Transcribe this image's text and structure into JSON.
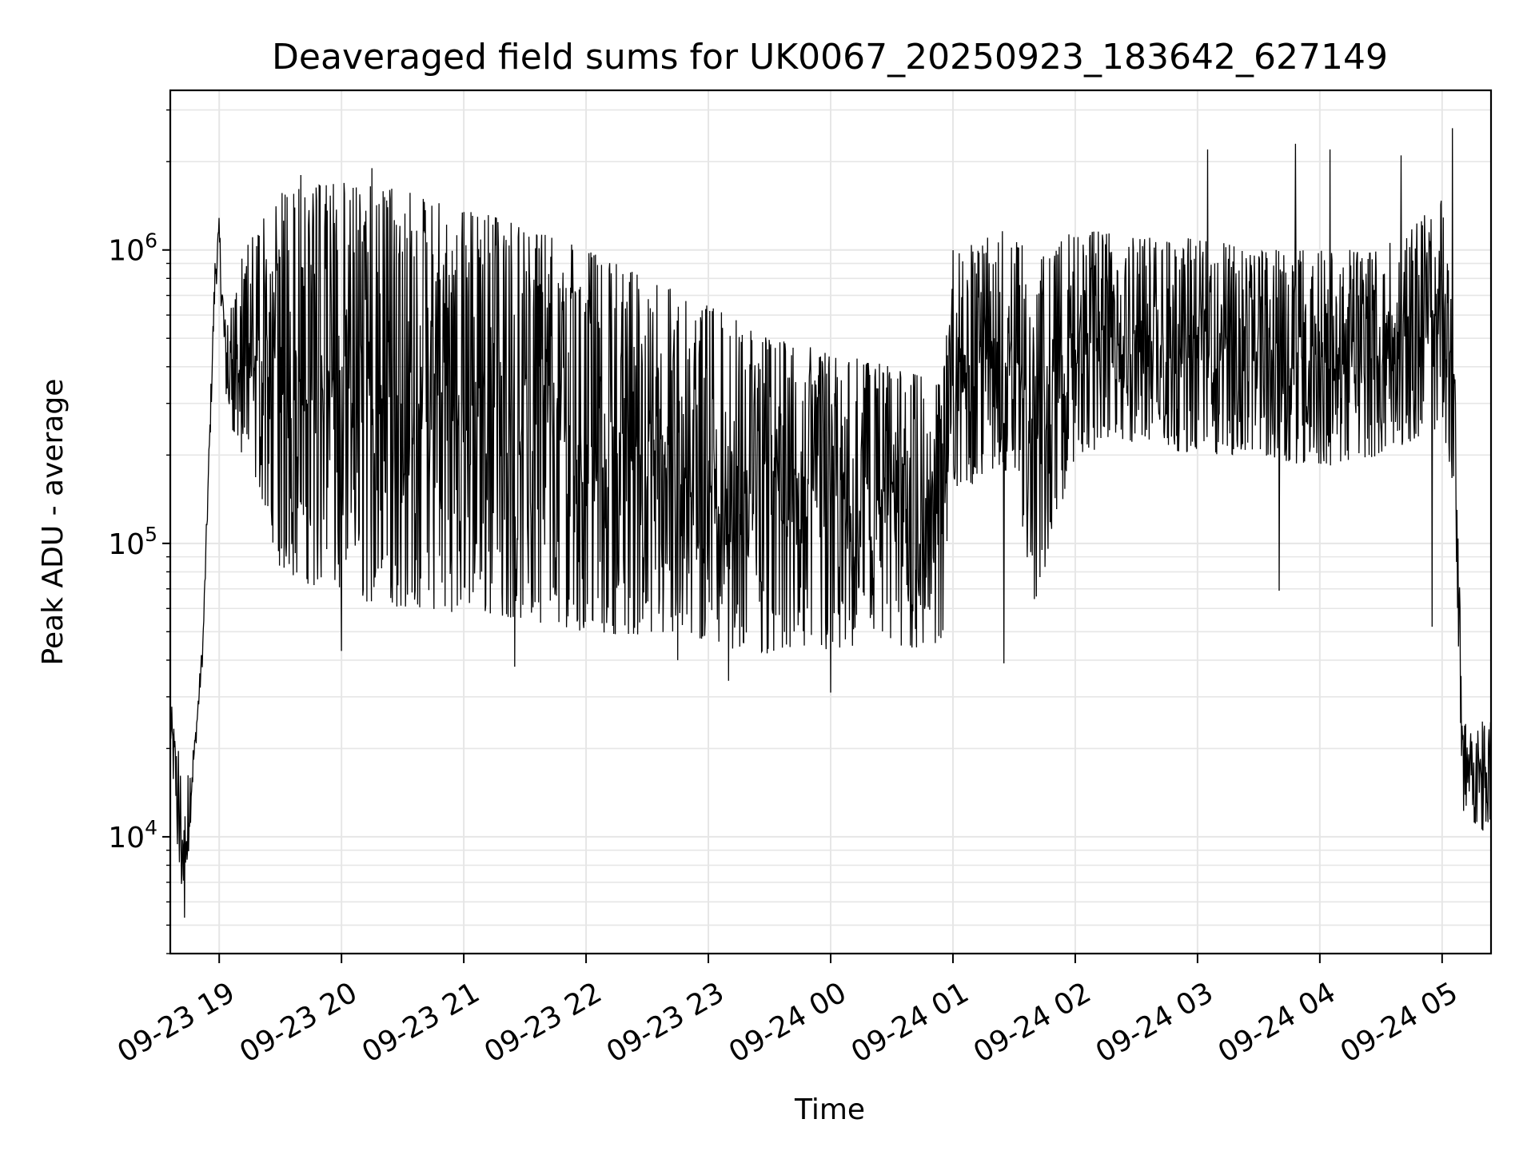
{
  "chart_data": {
    "type": "line",
    "title": "Deaveraged field sums for UK0067_20250923_183642_627149",
    "xlabel": "Time",
    "ylabel": "Peak ADU - average",
    "x_axis": {
      "kind": "time",
      "range": [
        "2025-09-23 18:36",
        "2025-09-24 05:24"
      ],
      "ticks": [
        {
          "value": "2025-09-23 19:00",
          "label": "09-23 19"
        },
        {
          "value": "2025-09-23 20:00",
          "label": "09-23 20"
        },
        {
          "value": "2025-09-23 21:00",
          "label": "09-23 21"
        },
        {
          "value": "2025-09-23 22:00",
          "label": "09-23 22"
        },
        {
          "value": "2025-09-23 23:00",
          "label": "09-23 23"
        },
        {
          "value": "2025-09-24 00:00",
          "label": "09-24 00"
        },
        {
          "value": "2025-09-24 01:00",
          "label": "09-24 01"
        },
        {
          "value": "2025-09-24 02:00",
          "label": "09-24 02"
        },
        {
          "value": "2025-09-24 03:00",
          "label": "09-24 03"
        },
        {
          "value": "2025-09-24 04:00",
          "label": "09-24 04"
        },
        {
          "value": "2025-09-24 05:00",
          "label": "09-24 05"
        }
      ],
      "tick_label_rotation_deg": 30
    },
    "y_axis": {
      "scale": "log",
      "range": [
        4000,
        3500000
      ],
      "ticks": [
        {
          "value": 10000,
          "base": "10",
          "exp": "4"
        },
        {
          "value": 100000,
          "base": "10",
          "exp": "5"
        },
        {
          "value": 1000000,
          "base": "10",
          "exp": "6"
        }
      ]
    },
    "grid": true,
    "series_color": "#000000",
    "grid_color": "#e6e6e6",
    "envelope": [
      {
        "t": "2025-09-23 18:36",
        "low": 20000,
        "high": 30000
      },
      {
        "t": "2025-09-23 18:40",
        "low": 8000,
        "high": 20000
      },
      {
        "t": "2025-09-23 18:43",
        "low": 5500,
        "high": 17000
      },
      {
        "t": "2025-09-23 18:48",
        "low": 18000,
        "high": 22000
      },
      {
        "t": "2025-09-23 18:52",
        "low": 40000,
        "high": 50000
      },
      {
        "t": "2025-09-23 18:58",
        "low": 700000,
        "high": 1000000
      },
      {
        "t": "2025-09-23 19:00",
        "low": 900000,
        "high": 1300000
      },
      {
        "t": "2025-09-23 19:03",
        "low": 300000,
        "high": 600000
      },
      {
        "t": "2025-09-23 19:10",
        "low": 200000,
        "high": 900000
      },
      {
        "t": "2025-09-23 19:20",
        "low": 150000,
        "high": 1300000
      },
      {
        "t": "2025-09-23 19:30",
        "low": 80000,
        "high": 1600000
      },
      {
        "t": "2025-09-23 20:00",
        "low": 65000,
        "high": 1700000
      },
      {
        "t": "2025-09-23 20:30",
        "low": 60000,
        "high": 1600000
      },
      {
        "t": "2025-09-23 21:00",
        "low": 58000,
        "high": 1400000
      },
      {
        "t": "2025-09-23 21:30",
        "low": 55000,
        "high": 1200000
      },
      {
        "t": "2025-09-23 22:00",
        "low": 50000,
        "high": 1000000
      },
      {
        "t": "2025-09-23 22:30",
        "low": 48000,
        "high": 800000
      },
      {
        "t": "2025-09-23 23:00",
        "low": 45000,
        "high": 650000
      },
      {
        "t": "2025-09-23 23:30",
        "low": 42000,
        "high": 500000
      },
      {
        "t": "2025-09-24 00:00",
        "low": 42000,
        "high": 450000
      },
      {
        "t": "2025-09-24 00:30",
        "low": 42000,
        "high": 400000
      },
      {
        "t": "2025-09-24 00:55",
        "low": 45000,
        "high": 350000
      },
      {
        "t": "2025-09-24 01:00",
        "low": 150000,
        "high": 1000000
      },
      {
        "t": "2025-09-24 01:30",
        "low": 180000,
        "high": 1200000
      },
      {
        "t": "2025-09-24 01:40",
        "low": 60000,
        "high": 900000
      },
      {
        "t": "2025-09-24 02:00",
        "low": 200000,
        "high": 1200000
      },
      {
        "t": "2025-09-24 02:30",
        "low": 220000,
        "high": 1100000
      },
      {
        "t": "2025-09-24 03:00",
        "low": 200000,
        "high": 1100000
      },
      {
        "t": "2025-09-24 03:30",
        "low": 200000,
        "high": 1000000
      },
      {
        "t": "2025-09-24 04:00",
        "low": 180000,
        "high": 1000000
      },
      {
        "t": "2025-09-24 04:30",
        "low": 200000,
        "high": 1000000
      },
      {
        "t": "2025-09-24 05:00",
        "low": 250000,
        "high": 1500000
      },
      {
        "t": "2025-09-24 05:06",
        "low": 150000,
        "high": 500000
      },
      {
        "t": "2025-09-24 05:10",
        "low": 12000,
        "high": 25000
      },
      {
        "t": "2025-09-24 05:24",
        "low": 10000,
        "high": 25000
      }
    ],
    "spikes": [
      {
        "t": "2025-09-23 18:43",
        "value": 5300
      },
      {
        "t": "2025-09-23 19:40",
        "value": 1800000
      },
      {
        "t": "2025-09-23 20:15",
        "value": 1900000
      },
      {
        "t": "2025-09-23 20:00",
        "value": 43000
      },
      {
        "t": "2025-09-23 21:25",
        "value": 38000
      },
      {
        "t": "2025-09-23 22:45",
        "value": 40000
      },
      {
        "t": "2025-09-23 23:10",
        "value": 34000
      },
      {
        "t": "2025-09-24 00:00",
        "value": 31000
      },
      {
        "t": "2025-09-24 01:25",
        "value": 39000
      },
      {
        "t": "2025-09-24 03:05",
        "value": 2200000
      },
      {
        "t": "2025-09-24 03:48",
        "value": 2300000
      },
      {
        "t": "2025-09-24 04:05",
        "value": 2200000
      },
      {
        "t": "2025-09-24 04:40",
        "value": 2100000
      },
      {
        "t": "2025-09-24 05:05",
        "value": 2600000
      },
      {
        "t": "2025-09-24 04:55",
        "value": 52000
      },
      {
        "t": "2025-09-24 03:40",
        "value": 69000
      },
      {
        "t": "2025-09-24 05:20",
        "value": 10500
      }
    ]
  }
}
